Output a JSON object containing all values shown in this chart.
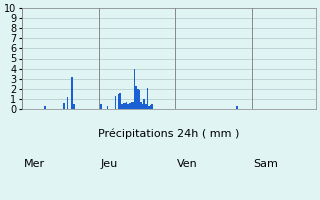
{
  "title": "",
  "xlabel": "Précipitations 24h ( mm )",
  "ylabel": "",
  "background_color": "#e0f4f4",
  "bar_color": "#1a5fd4",
  "grid_color": "#b0c8c8",
  "ylim": [
    0,
    10
  ],
  "yticks": [
    0,
    1,
    2,
    3,
    4,
    5,
    6,
    7,
    8,
    9,
    10
  ],
  "day_labels": [
    "Mer",
    "Jeu",
    "Ven",
    "Sam"
  ],
  "day_positions": [
    0,
    48,
    96,
    144
  ],
  "total_bars": 168,
  "bars": [
    0,
    0,
    0,
    0,
    0,
    0,
    0,
    0,
    0,
    0,
    0,
    0,
    0,
    0,
    0.3,
    0,
    0,
    0,
    0,
    0,
    0,
    0,
    0,
    0,
    0,
    0,
    0.6,
    0,
    1.2,
    0,
    0,
    3.2,
    0.5,
    0,
    0,
    0,
    0,
    0,
    0,
    0,
    0,
    0,
    0,
    0,
    0,
    0,
    0,
    0,
    0,
    0.5,
    0,
    0,
    0,
    0.3,
    0,
    0,
    0,
    0,
    1.3,
    0,
    1.5,
    1.6,
    0.5,
    0.6,
    0.6,
    0.7,
    0.5,
    0.6,
    0.7,
    0.7,
    4.0,
    2.3,
    2.0,
    1.9,
    0.7,
    0.5,
    1.0,
    0.5,
    2.1,
    0.3,
    0.4,
    0.5,
    0,
    0,
    0,
    0,
    0,
    0,
    0,
    0,
    0,
    0,
    0,
    0,
    0,
    0,
    0,
    0,
    0,
    0,
    0,
    0,
    0,
    0,
    0,
    0,
    0,
    0,
    0,
    0,
    0,
    0,
    0,
    0,
    0,
    0,
    0,
    0,
    0,
    0,
    0,
    0,
    0,
    0,
    0,
    0,
    0,
    0,
    0,
    0,
    0,
    0,
    0,
    0,
    0.3,
    0,
    0,
    0,
    0,
    0,
    0,
    0,
    0,
    0,
    0,
    0,
    0,
    0,
    0,
    0,
    0,
    0,
    0,
    0,
    0,
    0,
    0,
    0,
    0,
    0,
    0,
    0,
    0,
    0,
    0,
    0,
    0,
    0,
    0,
    0,
    0,
    0,
    0,
    0,
    0,
    0,
    0,
    0,
    0,
    0,
    0,
    0,
    0,
    0
  ]
}
